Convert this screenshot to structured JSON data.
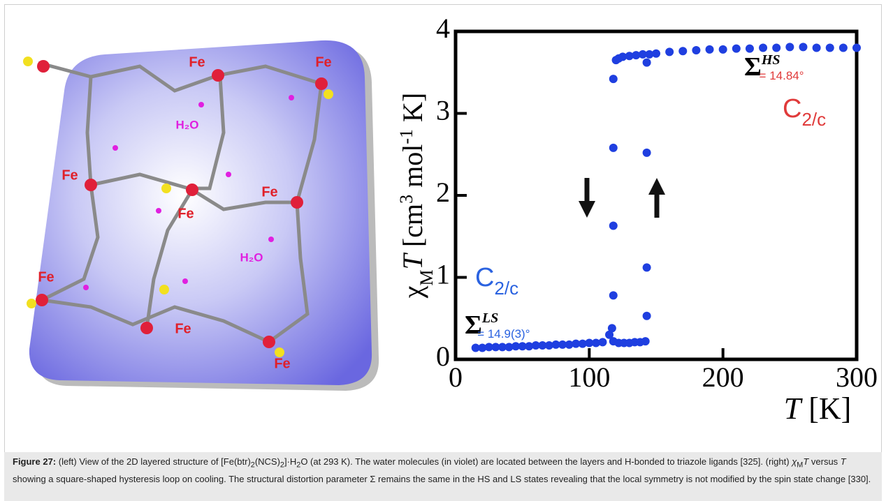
{
  "structure_image": {
    "fe_labels": [
      "Fe",
      "Fe",
      "Fe",
      "Fe",
      "Fe",
      "Fe",
      "Fe",
      "Fe"
    ],
    "water_labels": [
      "H₂O",
      "H₂O"
    ]
  },
  "chart_data": {
    "type": "scatter",
    "x_label": [
      {
        "text": "T",
        "style": "i"
      },
      {
        "text": " [K]",
        "style": "n"
      }
    ],
    "y_label": [
      {
        "text": "χ",
        "style": "n"
      },
      {
        "text": "M",
        "style": "sub"
      },
      {
        "text": "T",
        "style": "i"
      },
      {
        "text": " [cm",
        "style": "n"
      },
      {
        "text": "3",
        "style": "sup"
      },
      {
        "text": " mol",
        "style": "n"
      },
      {
        "text": "-1",
        "style": "sup"
      },
      {
        "text": " K]",
        "style": "n"
      }
    ],
    "xlim": [
      0,
      300
    ],
    "xticks": [
      0,
      100,
      200,
      300
    ],
    "ylim": [
      0,
      4
    ],
    "yticks": [
      0,
      1,
      2,
      3,
      4
    ],
    "x": [
      15,
      20,
      25,
      30,
      35,
      40,
      45,
      50,
      55,
      60,
      65,
      70,
      75,
      80,
      85,
      90,
      95,
      100,
      105,
      110,
      115,
      117,
      118,
      118,
      118,
      118,
      118,
      122,
      126,
      130,
      134,
      138,
      142,
      143,
      143,
      143,
      120,
      122,
      125,
      130,
      135,
      140,
      143,
      145,
      150,
      160,
      170,
      180,
      190,
      200,
      210,
      220,
      230,
      240,
      250,
      260,
      270,
      280,
      290,
      300
    ],
    "series": [
      {
        "color": "#1f3fe0",
        "values": [
          0.14,
          0.14,
          0.15,
          0.15,
          0.15,
          0.15,
          0.16,
          0.16,
          0.16,
          0.17,
          0.17,
          0.17,
          0.18,
          0.18,
          0.18,
          0.19,
          0.19,
          0.2,
          0.2,
          0.21,
          0.3,
          0.38,
          0.78,
          1.63,
          2.58,
          3.42,
          0.22,
          0.2,
          0.2,
          0.2,
          0.21,
          0.21,
          0.22,
          0.53,
          1.12,
          2.52,
          3.65,
          3.67,
          3.69,
          3.7,
          3.71,
          3.72,
          3.62,
          3.72,
          3.73,
          3.75,
          3.76,
          3.77,
          3.78,
          3.78,
          3.79,
          3.79,
          3.8,
          3.8,
          3.81,
          3.81,
          3.8,
          3.8,
          3.8,
          3.8
        ]
      }
    ],
    "annotations": [
      {
        "symbol": "Σ",
        "sup": "HS",
        "text": "= 14.84°",
        "color": "#e03a3a"
      },
      {
        "phase": "C",
        "sub": "2/c",
        "color": "#e03a3a"
      },
      {
        "phase": "C",
        "sub": "2/c",
        "color": "#2a62e0"
      },
      {
        "symbol": "Σ",
        "sup": "LS",
        "text": "= 14.9(3)°",
        "color": "#2a62e0"
      }
    ]
  },
  "caption": [
    {
      "text": "Figure 27:",
      "style": "b"
    },
    {
      "text": " (left) View of the 2D layered structure of [Fe(btr)",
      "style": "n"
    },
    {
      "text": "2",
      "style": "sub"
    },
    {
      "text": "(NCS)",
      "style": "n"
    },
    {
      "text": "2",
      "style": "sub"
    },
    {
      "text": "]·H",
      "style": "n"
    },
    {
      "text": "2",
      "style": "sub"
    },
    {
      "text": "O (at 293 K). The water molecules (in violet) are located between the layers and H-bonded to triazole ligands [325]. (right) ",
      "style": "n"
    },
    {
      "text": "χ",
      "style": "i"
    },
    {
      "text": "M",
      "style": "sub"
    },
    {
      "text": "T",
      "style": "i"
    },
    {
      "text": " versus ",
      "style": "n"
    },
    {
      "text": "T",
      "style": "i"
    },
    {
      "text": " showing a square-shaped hysteresis loop on cooling. The structural distortion parameter Σ remains the same in the HS and LS states revealing that the local symmetry is not modified by the spin state change [330].",
      "style": "n"
    }
  ]
}
